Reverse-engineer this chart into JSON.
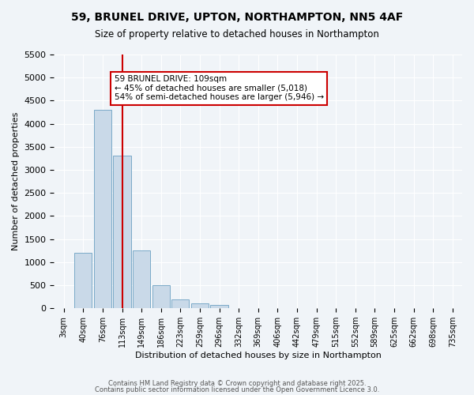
{
  "title1": "59, BRUNEL DRIVE, UPTON, NORTHAMPTON, NN5 4AF",
  "title2": "Size of property relative to detached houses in Northampton",
  "xlabel": "Distribution of detached houses by size in Northampton",
  "ylabel": "Number of detached properties",
  "categories": [
    "3sqm",
    "40sqm",
    "76sqm",
    "113sqm",
    "149sqm",
    "186sqm",
    "223sqm",
    "259sqm",
    "296sqm",
    "332sqm",
    "369sqm",
    "406sqm",
    "442sqm",
    "479sqm",
    "515sqm",
    "552sqm",
    "589sqm",
    "625sqm",
    "662sqm",
    "698sqm",
    "735sqm"
  ],
  "values": [
    0,
    1200,
    4300,
    3300,
    1250,
    500,
    200,
    100,
    75,
    0,
    0,
    0,
    0,
    0,
    0,
    0,
    0,
    0,
    0,
    0,
    0
  ],
  "bar_color": "#c9d9e8",
  "bar_edge_color": "#7aaac8",
  "ylim": [
    0,
    5500
  ],
  "yticks": [
    0,
    500,
    1000,
    1500,
    2000,
    2500,
    3000,
    3500,
    4000,
    4500,
    5000,
    5500
  ],
  "vline_x_index": 3,
  "vline_color": "#cc0000",
  "annotation_text": "59 BRUNEL DRIVE: 109sqm\n← 45% of detached houses are smaller (5,018)\n54% of semi-detached houses are larger (5,946) →",
  "annotation_box_color": "#ffffff",
  "annotation_box_edge": "#cc0000",
  "background_color": "#f0f4f8",
  "grid_color": "#ffffff",
  "footer1": "Contains HM Land Registry data © Crown copyright and database right 2025.",
  "footer2": "Contains public sector information licensed under the Open Government Licence 3.0."
}
